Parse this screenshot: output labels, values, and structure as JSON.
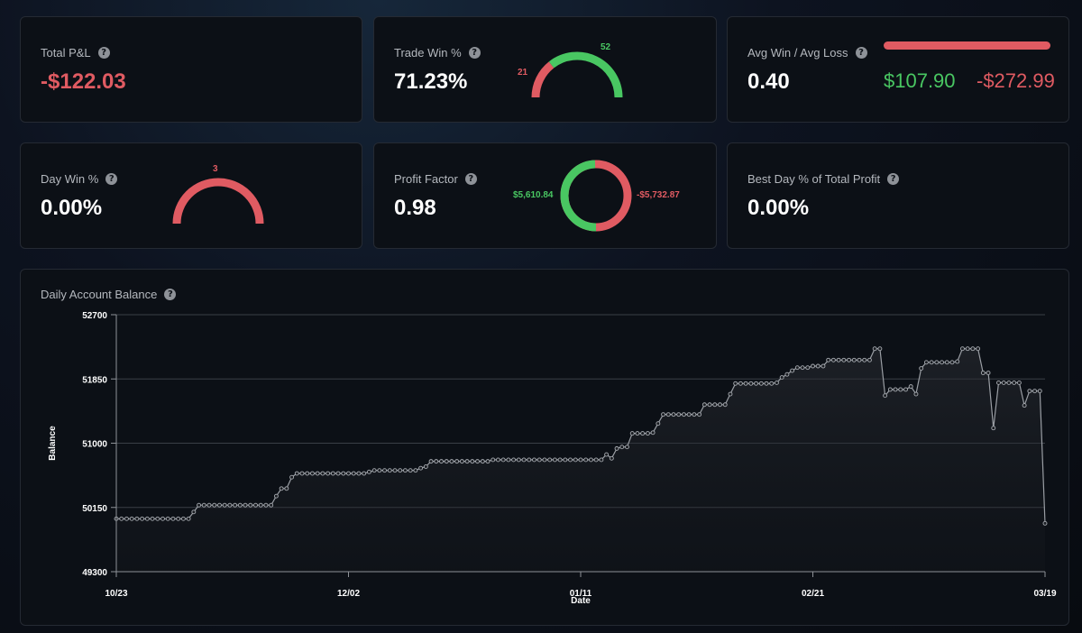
{
  "total_pnl": {
    "title": "Total P&L",
    "value": "-$122.03"
  },
  "trade_win": {
    "title": "Trade Win %",
    "value": "71.23%",
    "wins": "52",
    "losses": "21",
    "win_count": 52,
    "loss_count": 21
  },
  "avg_win_loss": {
    "title": "Avg Win / Avg Loss",
    "value": "0.40",
    "avg_win": "$107.90",
    "avg_loss": "-$272.99"
  },
  "day_win": {
    "title": "Day Win %",
    "value": "0.00%",
    "losses": "3",
    "win_count": 0,
    "loss_count": 3
  },
  "profit_factor": {
    "title": "Profit Factor",
    "value": "0.98",
    "gross_profit": "$5,610.84",
    "gross_loss": "-$5,732.87",
    "profit_amount": 5610.84,
    "loss_amount": 5732.87
  },
  "best_day": {
    "title": "Best Day % of Total Profit",
    "value": "0.00%"
  },
  "balance_chart": {
    "title": "Daily Account Balance"
  },
  "colors": {
    "positive": "#49c762",
    "negative": "#e05b62",
    "line": "#9a9ea4",
    "grid": "#3a3f47"
  },
  "chart_data": {
    "type": "line",
    "title": "Daily Account Balance",
    "xlabel": "Date",
    "ylabel": "Balance",
    "x_ticks": [
      "10/23",
      "12/02",
      "01/11",
      "02/21",
      "03/19"
    ],
    "y_ticks": [
      "52700",
      "51850",
      "51000",
      "50150",
      "49300"
    ],
    "ylim": [
      49300,
      52700
    ],
    "grid": true,
    "series": [
      {
        "values": [
          50000,
          50000,
          50000,
          50000,
          50000,
          50000,
          50000,
          50000,
          50000,
          50000,
          50000,
          50000,
          50000,
          50000,
          50000,
          50090,
          50180,
          50180,
          50180,
          50180,
          50180,
          50180,
          50180,
          50180,
          50180,
          50180,
          50180,
          50180,
          50180,
          50180,
          50180,
          50300,
          50400,
          50400,
          50550,
          50600,
          50600,
          50600,
          50600,
          50600,
          50600,
          50600,
          50600,
          50600,
          50600,
          50600,
          50600,
          50600,
          50600,
          50620,
          50640,
          50640,
          50640,
          50640,
          50640,
          50640,
          50640,
          50640,
          50640,
          50670,
          50690,
          50760,
          50760,
          50760,
          50760,
          50760,
          50760,
          50760,
          50760,
          50760,
          50760,
          50760,
          50760,
          50780,
          50780,
          50780,
          50780,
          50780,
          50780,
          50780,
          50780,
          50780,
          50780,
          50780,
          50780,
          50780,
          50780,
          50780,
          50780,
          50780,
          50780,
          50780,
          50780,
          50780,
          50780,
          50850,
          50800,
          50930,
          50950,
          50950,
          51130,
          51130,
          51130,
          51130,
          51140,
          51260,
          51380,
          51380,
          51380,
          51380,
          51380,
          51380,
          51380,
          51380,
          51510,
          51510,
          51510,
          51510,
          51510,
          51650,
          51790,
          51790,
          51790,
          51790,
          51790,
          51790,
          51790,
          51790,
          51800,
          51870,
          51910,
          51960,
          52000,
          52000,
          52000,
          52020,
          52020,
          52020,
          52100,
          52100,
          52100,
          52100,
          52100,
          52100,
          52100,
          52100,
          52100,
          52250,
          52250,
          51630,
          51710,
          51710,
          51710,
          51710,
          51750,
          51650,
          51990,
          52070,
          52070,
          52070,
          52070,
          52070,
          52070,
          52080,
          52250,
          52250,
          52250,
          52250,
          51930,
          51930,
          51200,
          51800,
          51800,
          51800,
          51800,
          51800,
          51500,
          51690,
          51690,
          51690,
          49940
        ]
      }
    ]
  }
}
